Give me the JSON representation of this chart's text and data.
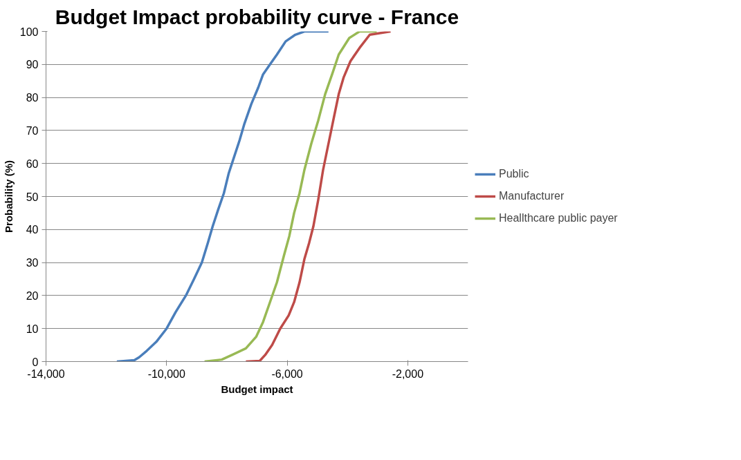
{
  "chart_data": {
    "type": "line",
    "title": "Budget Impact probability curve - France",
    "xlabel": "Budget impact",
    "ylabel": "Probability (%)",
    "xlim": [
      -14000,
      0
    ],
    "xticks": [
      {
        "value": -14000,
        "label": "-14,000"
      },
      {
        "value": -10000,
        "label": "-10,000"
      },
      {
        "value": -6000,
        "label": "-6,000"
      },
      {
        "value": -2000,
        "label": "-2,000"
      }
    ],
    "ylim": [
      0,
      100
    ],
    "yticks": [
      0,
      10,
      20,
      30,
      40,
      50,
      60,
      70,
      80,
      90,
      100
    ],
    "grid": "y",
    "legend": "right",
    "marker": "none",
    "line_style": "solid",
    "series": [
      {
        "name": "Public",
        "color": "#4a7ebb",
        "x": [
          -11650,
          -11070,
          -10910,
          -10690,
          -10340,
          -10000,
          -9700,
          -9360,
          -9090,
          -8830,
          -8630,
          -8470,
          -8290,
          -8100,
          -7940,
          -7760,
          -7580,
          -7420,
          -7190,
          -6960,
          -6800,
          -6570,
          -6340,
          -6050,
          -5730,
          -5430,
          -4630
        ],
        "values": [
          0,
          0.4,
          1.3,
          3,
          6,
          10,
          15,
          20,
          25,
          30,
          36,
          41,
          46,
          51,
          57,
          62,
          67,
          72,
          78,
          83,
          87,
          90,
          93,
          97,
          99,
          100,
          100
        ]
      },
      {
        "name": "Manufacturer",
        "color": "#be4b48",
        "x": [
          -7370,
          -6910,
          -6730,
          -6500,
          -6230,
          -5950,
          -5770,
          -5590,
          -5430,
          -5270,
          -5130,
          -4970,
          -4810,
          -4630,
          -4450,
          -4290,
          -4130,
          -3900,
          -3600,
          -3260,
          -2570
        ],
        "values": [
          0,
          0.2,
          2,
          5,
          10,
          14,
          18,
          24,
          31,
          36,
          41,
          49,
          58,
          66,
          74,
          81,
          86,
          91,
          95,
          99,
          100
        ]
      },
      {
        "name": "Heallthcare public payer",
        "color": "#98b954",
        "x": [
          -8740,
          -8170,
          -7830,
          -7370,
          -7030,
          -6800,
          -6570,
          -6340,
          -6110,
          -5930,
          -5770,
          -5590,
          -5430,
          -5200,
          -4970,
          -4740,
          -4510,
          -4290,
          -3940,
          -3600,
          -3030
        ],
        "values": [
          0,
          0.6,
          2,
          4,
          7.5,
          12,
          18,
          24,
          32,
          38,
          45,
          51,
          58,
          66,
          73,
          81,
          87,
          93,
          98,
          100,
          100
        ]
      }
    ]
  }
}
